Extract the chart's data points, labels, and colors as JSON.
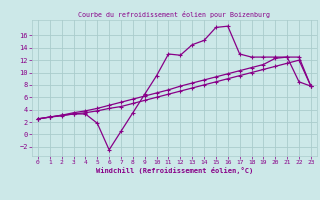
{
  "title": "Courbe du refroidissement éolien pour Boizenburg",
  "xlabel": "Windchill (Refroidissement éolien,°C)",
  "background_color": "#cce8e8",
  "grid_color": "#aacccc",
  "line_color": "#880088",
  "xlim": [
    -0.5,
    23.5
  ],
  "ylim": [
    -3.5,
    18.5
  ],
  "xticks": [
    0,
    1,
    2,
    3,
    4,
    5,
    6,
    7,
    8,
    9,
    10,
    11,
    12,
    13,
    14,
    15,
    16,
    17,
    18,
    19,
    20,
    21,
    22,
    23
  ],
  "yticks": [
    -2,
    0,
    2,
    4,
    6,
    8,
    10,
    12,
    14,
    16
  ],
  "curve1_x": [
    0,
    1,
    2,
    3,
    4,
    5,
    6,
    7,
    8,
    9,
    10,
    11,
    12,
    13,
    14,
    15,
    16,
    17,
    18,
    19,
    20,
    21,
    22,
    23
  ],
  "curve1_y": [
    2.5,
    2.8,
    3.0,
    3.3,
    3.5,
    3.8,
    4.2,
    4.5,
    5.0,
    5.5,
    6.0,
    6.5,
    7.0,
    7.5,
    8.0,
    8.5,
    9.0,
    9.5,
    10.0,
    10.5,
    11.0,
    11.5,
    12.0,
    7.8
  ],
  "curve2_x": [
    0,
    1,
    2,
    3,
    4,
    5,
    6,
    7,
    8,
    9,
    10,
    11,
    12,
    13,
    14,
    15,
    16,
    17,
    18,
    19,
    20,
    21,
    22,
    23
  ],
  "curve2_y": [
    2.5,
    2.8,
    3.1,
    3.5,
    3.8,
    4.2,
    4.7,
    5.2,
    5.7,
    6.2,
    6.7,
    7.2,
    7.8,
    8.3,
    8.8,
    9.3,
    9.8,
    10.3,
    10.8,
    11.3,
    12.3,
    12.5,
    12.5,
    7.8
  ],
  "curve3_x": [
    0,
    1,
    2,
    3,
    4,
    5,
    6,
    7,
    8,
    9,
    10,
    11,
    12,
    13,
    14,
    15,
    16,
    17,
    18,
    19,
    20,
    21,
    22,
    23
  ],
  "curve3_y": [
    2.5,
    2.8,
    3.1,
    3.3,
    3.3,
    1.8,
    -2.5,
    0.5,
    3.5,
    6.5,
    9.5,
    13.0,
    12.8,
    14.5,
    15.2,
    17.3,
    17.5,
    13.0,
    12.5,
    12.5,
    12.5,
    12.5,
    8.5,
    7.8
  ]
}
